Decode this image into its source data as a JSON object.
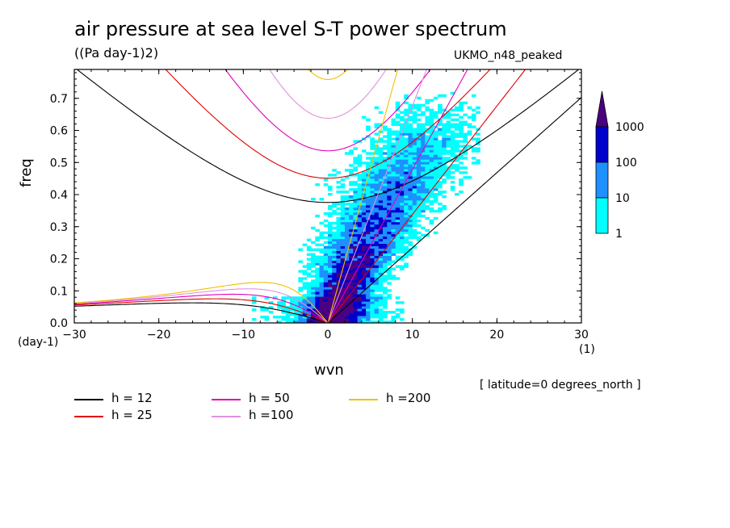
{
  "chart_data": {
    "type": "heatmap",
    "title": "air pressure at sea level S-T power spectrum",
    "units": "((Pa day-1)2)",
    "model_label": "UKMO_n48_peaked",
    "xlabel": "wvn",
    "ylabel": "freq",
    "x_unit": "(1)",
    "y_unit": "(day-1)",
    "xlim": [
      -30,
      30
    ],
    "ylim": [
      0,
      0.79
    ],
    "x_ticks": [
      -30,
      -20,
      -10,
      0,
      10,
      20,
      30
    ],
    "y_ticks": [
      0.0,
      0.1,
      0.2,
      0.3,
      0.4,
      0.5,
      0.6,
      0.7
    ],
    "y_tick_labels": [
      "0.0",
      "0.1",
      "0.2",
      "0.3",
      "0.4",
      "0.5",
      "0.6",
      "0.7"
    ],
    "note": "[ latitude=0 degrees_north ]",
    "colorbar": {
      "levels": [
        1,
        10,
        100,
        1000
      ],
      "labels": [
        "1",
        "10",
        "100",
        "1000"
      ],
      "colors": [
        "#00ffff",
        "#1e90ff",
        "#0000cd",
        "#4b0082"
      ]
    },
    "dispersion_curves": [
      {
        "label": "h = 12",
        "h": 12,
        "color": "#000000"
      },
      {
        "label": "h = 25",
        "h": 25,
        "color": "#e00000"
      },
      {
        "label": "h = 50",
        "h": 50,
        "color": "#e000c0"
      },
      {
        "label": "h =100",
        "h": 100,
        "color": "#e090e0"
      },
      {
        "label": "h =200",
        "h": 200,
        "color": "#f0c000"
      }
    ]
  }
}
